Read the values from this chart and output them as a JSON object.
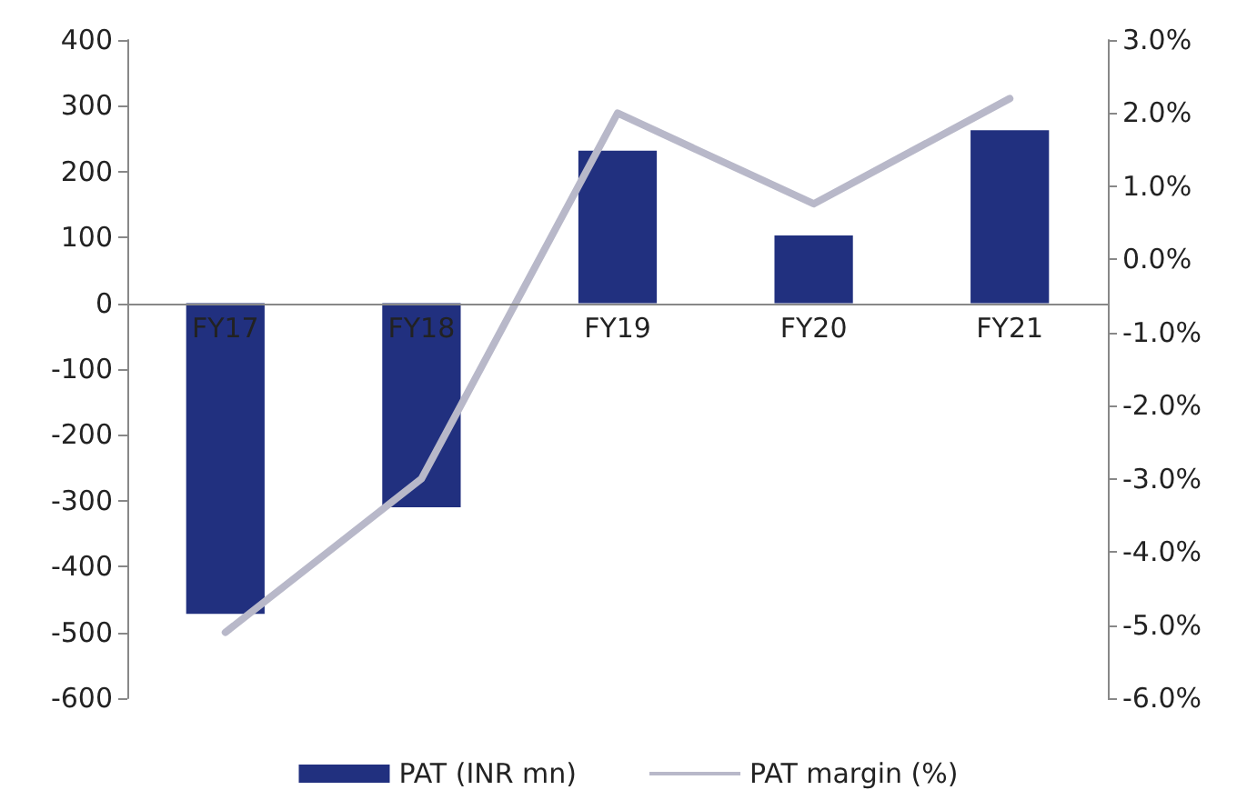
{
  "chart_data": {
    "type": "bar",
    "categories": [
      "FY17",
      "FY18",
      "FY19",
      "FY20",
      "FY21"
    ],
    "series": [
      {
        "name": "PAT (INR mn)",
        "type": "bar",
        "color": "#21307f",
        "values": [
          -472,
          -310,
          232,
          103,
          263
        ]
      },
      {
        "name": "PAT margin (%)",
        "type": "line",
        "axis": "y2",
        "color": "#b8b8c9",
        "values": [
          -5.1,
          -3.0,
          2.0,
          0.76,
          2.2
        ]
      }
    ],
    "ylim": [
      -600,
      400
    ],
    "yticks": [
      -600,
      -500,
      -400,
      -300,
      -200,
      -100,
      0,
      100,
      200,
      300,
      400
    ],
    "y2lim": [
      -6,
      3
    ],
    "y2ticks": [
      {
        "value": -6,
        "label": "-6.0%"
      },
      {
        "value": -5,
        "label": "-5.0%"
      },
      {
        "value": -4,
        "label": "-4.0%"
      },
      {
        "value": -3,
        "label": "-3.0%"
      },
      {
        "value": -2,
        "label": "-2.0%"
      },
      {
        "value": -1,
        "label": "-1.0%"
      },
      {
        "value": 0,
        "label": "0.0%"
      },
      {
        "value": 1,
        "label": "1.0%"
      },
      {
        "value": 2,
        "label": "2.0%"
      },
      {
        "value": 3,
        "label": "3.0%"
      }
    ],
    "grid": false,
    "legend": "bottom",
    "marker": "none",
    "line_style": "solid"
  }
}
